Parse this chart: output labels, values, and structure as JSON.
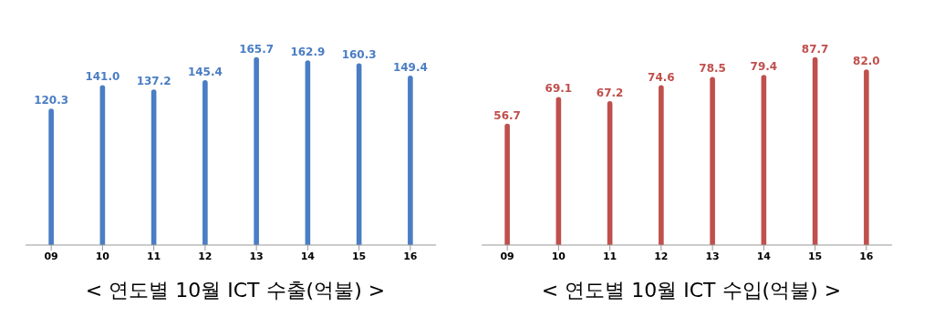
{
  "chart_data": [
    {
      "type": "bar",
      "title": "< 연도별 10월 ICT 수출(억불) >",
      "categories": [
        "09",
        "10",
        "11",
        "12",
        "13",
        "14",
        "15",
        "16"
      ],
      "series": [
        {
          "color": "#4a7dc4",
          "values": [
            120.3,
            141.0,
            137.2,
            145.4,
            165.7,
            162.9,
            160.3,
            149.4
          ],
          "value_labels": [
            "120.3",
            "141.0",
            "137.2",
            "145.4",
            "165.7",
            "162.9",
            "160.3",
            "149.4"
          ]
        }
      ],
      "legend": false,
      "grid": false
    },
    {
      "type": "bar",
      "title": "< 연도별 10월 ICT 수입(억불) >",
      "categories": [
        "09",
        "10",
        "11",
        "12",
        "13",
        "14",
        "15",
        "16"
      ],
      "series": [
        {
          "color": "#c0504d",
          "values": [
            56.7,
            69.1,
            67.2,
            74.6,
            78.5,
            79.4,
            87.7,
            82.0
          ],
          "value_labels": [
            "56.7",
            "69.1",
            "67.2",
            "74.6",
            "78.5",
            "79.4",
            "87.7",
            "82.0"
          ]
        }
      ],
      "legend": false,
      "grid": false
    }
  ]
}
